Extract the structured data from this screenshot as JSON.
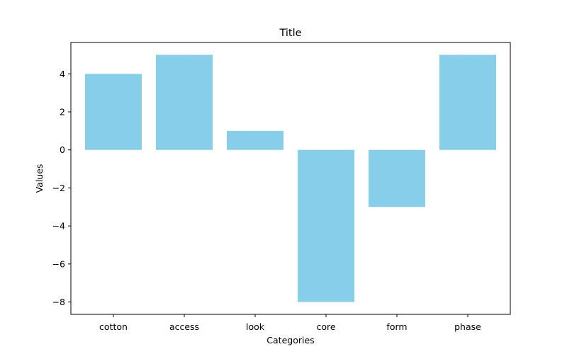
{
  "chart_data": {
    "type": "bar",
    "title": "Title",
    "xlabel": "Categories",
    "ylabel": "Values",
    "categories": [
      "cotton",
      "access",
      "look",
      "core",
      "form",
      "phase"
    ],
    "values": [
      4,
      5,
      1,
      -8,
      -3,
      5
    ],
    "ylim": [
      -8.65,
      5.65
    ],
    "yticks": [
      -8,
      -6,
      -4,
      -2,
      0,
      2,
      4
    ],
    "bar_color": "#87CEEB",
    "grid": false,
    "legend": "none"
  }
}
